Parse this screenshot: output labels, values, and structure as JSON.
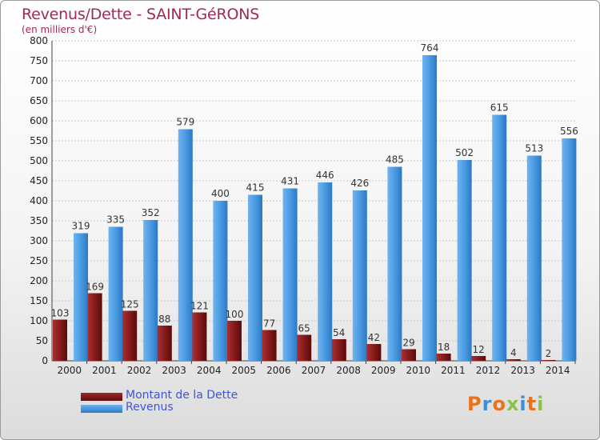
{
  "chart_data": {
    "type": "bar",
    "title": "Revenus/Dette - SAINT-GéRONS",
    "subtitle": "(en milliers d'€)",
    "categories": [
      "2000",
      "2001",
      "2002",
      "2003",
      "2004",
      "2005",
      "2006",
      "2007",
      "2008",
      "2009",
      "2010",
      "2011",
      "2012",
      "2013",
      "2014"
    ],
    "series": [
      {
        "name": "Montant de la Dette",
        "color": "#7a1414",
        "values": [
          103,
          169,
          125,
          88,
          121,
          100,
          77,
          65,
          54,
          42,
          29,
          18,
          12,
          4,
          2
        ]
      },
      {
        "name": "Revenus",
        "color": "#3d8fdc",
        "values": [
          319,
          335,
          352,
          579,
          400,
          415,
          431,
          446,
          426,
          485,
          764,
          502,
          615,
          513,
          556
        ]
      }
    ],
    "ylim": [
      0,
      800
    ],
    "yticks": [
      0,
      50,
      100,
      150,
      200,
      250,
      300,
      350,
      400,
      450,
      500,
      550,
      600,
      650,
      700,
      750,
      800
    ],
    "grid": true,
    "legend_position": "bottom-left"
  },
  "logo_text": "Proxiti",
  "logo_colors": [
    "#e8731e",
    "#3d8fdc",
    "#e8731e",
    "#8bc34a",
    "#3d8fdc",
    "#e8731e",
    "#8bc34a"
  ]
}
